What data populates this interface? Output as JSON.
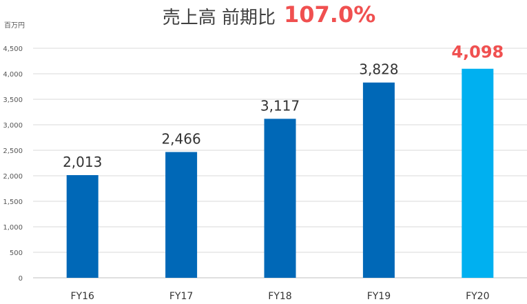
{
  "chart_data": {
    "type": "bar",
    "title": "売上高 前期比",
    "title_growth": "107.0%",
    "unit_label": "百万円",
    "categories": [
      "FY16",
      "FY17",
      "FY18",
      "FY19",
      "FY20"
    ],
    "values": [
      2013,
      2466,
      3117,
      3828,
      4098
    ],
    "value_labels": [
      "2,013",
      "2,466",
      "3,117",
      "3,828",
      "4,098"
    ],
    "y_ticks": [
      0,
      500,
      1000,
      1500,
      2000,
      2500,
      3000,
      3500,
      4000,
      4500
    ],
    "y_tick_labels": [
      "0",
      "500",
      "1,000",
      "1,500",
      "2,000",
      "2,500",
      "3,000",
      "3,500",
      "4,000",
      "4,500"
    ],
    "ylim": [
      0,
      4500
    ],
    "grid": true,
    "legend": "none",
    "highlight_index": 4,
    "colors": {
      "bar": "#0068b7",
      "bar_highlight": "#00b0f0",
      "highlight_text": "#f05050"
    }
  }
}
